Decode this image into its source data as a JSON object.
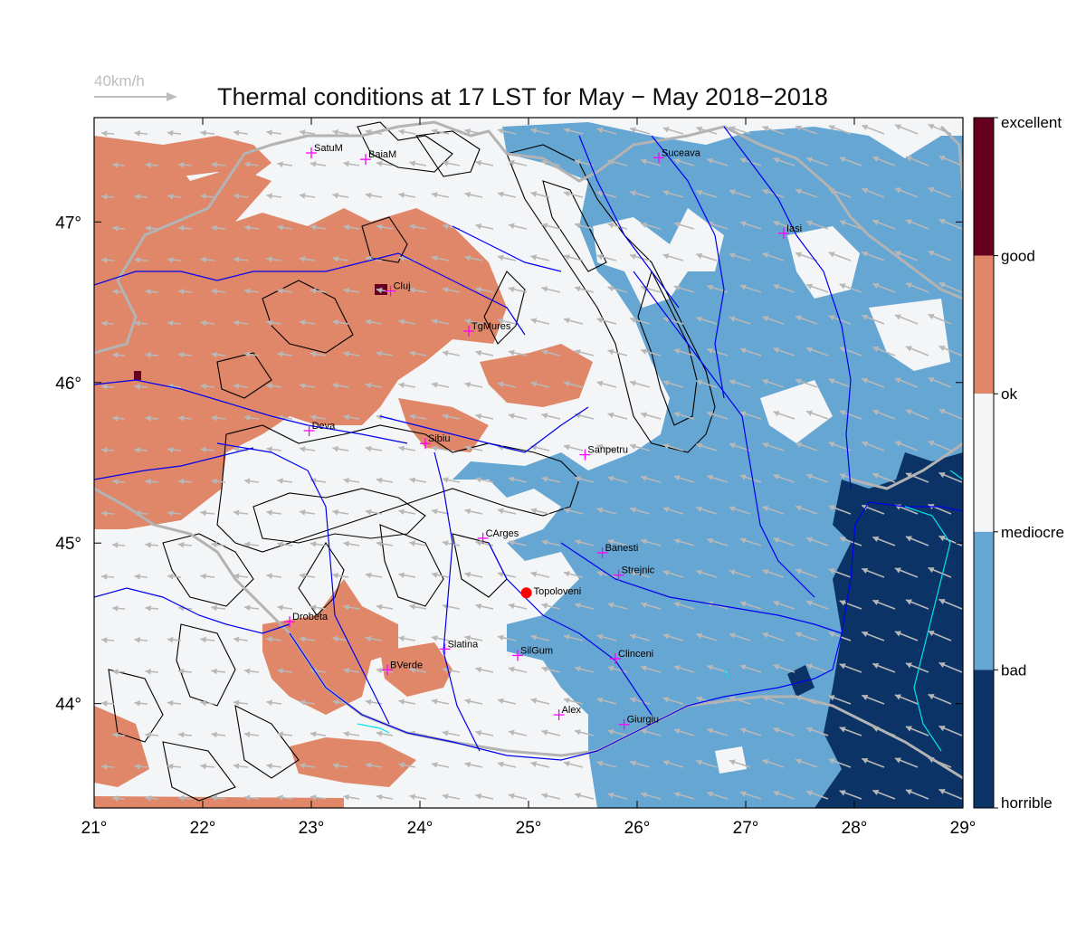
{
  "title": "Thermal conditions at 17 LST for May − May  2018−2018",
  "wind_scale": {
    "label": "40km/h"
  },
  "map": {
    "lon_range": [
      21,
      29
    ],
    "lat_range": [
      43.35,
      47.65
    ],
    "x_ticks": [
      "21°",
      "22°",
      "23°",
      "24°",
      "25°",
      "26°",
      "27°",
      "28°",
      "29°"
    ],
    "y_ticks": [
      "44°",
      "45°",
      "46°",
      "47°"
    ],
    "cities": [
      {
        "name": "SatuM",
        "lon": 23.0,
        "lat": 47.43
      },
      {
        "name": "BaiaM",
        "lon": 23.5,
        "lat": 47.39
      },
      {
        "name": "Suceava",
        "lon": 26.2,
        "lat": 47.4
      },
      {
        "name": "Iasi",
        "lon": 27.35,
        "lat": 46.93
      },
      {
        "name": "Cluj",
        "lon": 23.73,
        "lat": 46.57
      },
      {
        "name": "TgMures",
        "lon": 24.45,
        "lat": 46.32
      },
      {
        "name": "Deva",
        "lon": 22.98,
        "lat": 45.7
      },
      {
        "name": "Sibiu",
        "lon": 24.05,
        "lat": 45.62
      },
      {
        "name": "Sanpetru",
        "lon": 25.52,
        "lat": 45.55
      },
      {
        "name": "CArges",
        "lon": 24.58,
        "lat": 45.03
      },
      {
        "name": "Banesti",
        "lon": 25.68,
        "lat": 44.94
      },
      {
        "name": "Strejnic",
        "lon": 25.83,
        "lat": 44.8
      },
      {
        "name": "Drobeta",
        "lon": 22.8,
        "lat": 44.51
      },
      {
        "name": "Slatina",
        "lon": 24.23,
        "lat": 44.34
      },
      {
        "name": "SilGum",
        "lon": 24.9,
        "lat": 44.3
      },
      {
        "name": "Clinceni",
        "lon": 25.8,
        "lat": 44.28
      },
      {
        "name": "BVerde",
        "lon": 23.7,
        "lat": 44.21
      },
      {
        "name": "Alex",
        "lon": 25.28,
        "lat": 43.93
      },
      {
        "name": "Giurgiu",
        "lon": 25.88,
        "lat": 43.87
      }
    ],
    "site": {
      "name": "Topoloveni",
      "lon": 24.98,
      "lat": 44.69,
      "color": "#ff0000"
    }
  },
  "legend": {
    "labels": [
      "excellent",
      "good",
      "ok",
      "mediocre",
      "bad",
      "horrible"
    ],
    "colors": [
      "#67001f",
      "#e0876a",
      "#f4f5f7",
      "#65a6d3",
      "#0c3366"
    ]
  },
  "colors": {
    "river": "#0000ee",
    "border": "#b3b3b3",
    "wind": "#b8b8b8",
    "contour": "#000000",
    "city_marker": "#ff00ff",
    "lake": "#00e5ee"
  }
}
